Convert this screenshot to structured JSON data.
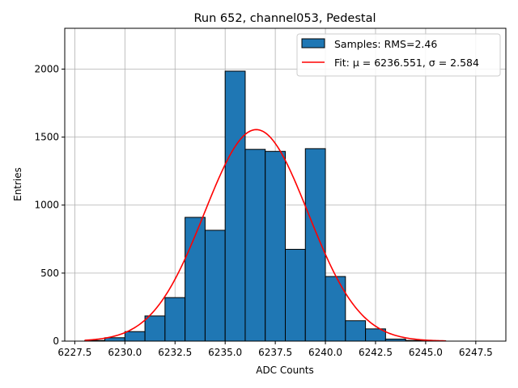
{
  "chart_data": {
    "type": "bar",
    "title": "Run 652, channel053, Pedestal",
    "xlabel": "ADC Counts",
    "ylabel": "Entries",
    "xlim": [
      6227.0,
      6249.0
    ],
    "ylim": [
      0,
      2300
    ],
    "grid": true,
    "legend_position": "top-right",
    "bar_color": "#1f77b4",
    "bar_edge_color": "#000000",
    "fit_color": "#ff0000",
    "x_ticks": [
      6227.5,
      6230.0,
      6232.5,
      6235.0,
      6237.5,
      6240.0,
      6242.5,
      6245.0,
      6247.5
    ],
    "x_tick_labels": [
      "6227.5",
      "6230.0",
      "6232.5",
      "6235.0",
      "6237.5",
      "6240.0",
      "6242.5",
      "6245.0",
      "6247.5"
    ],
    "y_ticks": [
      0,
      500,
      1000,
      1500,
      2000
    ],
    "y_tick_labels": [
      "0",
      "500",
      "1000",
      "1500",
      "2000"
    ],
    "bin_edges": [
      6228,
      6229,
      6230,
      6231,
      6232,
      6233,
      6234,
      6235,
      6236,
      6237,
      6238,
      6239,
      6240,
      6241,
      6242,
      6243,
      6244,
      6245,
      6246
    ],
    "values": [
      5,
      25,
      70,
      185,
      320,
      910,
      815,
      1985,
      1410,
      1395,
      675,
      1415,
      475,
      150,
      90,
      15,
      5,
      2
    ],
    "series": [
      {
        "name": "Samples: RMS=2.46",
        "kind": "histogram"
      },
      {
        "name": "Fit: μ = 6236.551, σ = 2.584",
        "kind": "gaussian-fit",
        "mu": 6236.551,
        "sigma": 2.584,
        "amplitude": 1555,
        "x_range": [
          6228,
          6246
        ]
      }
    ]
  }
}
